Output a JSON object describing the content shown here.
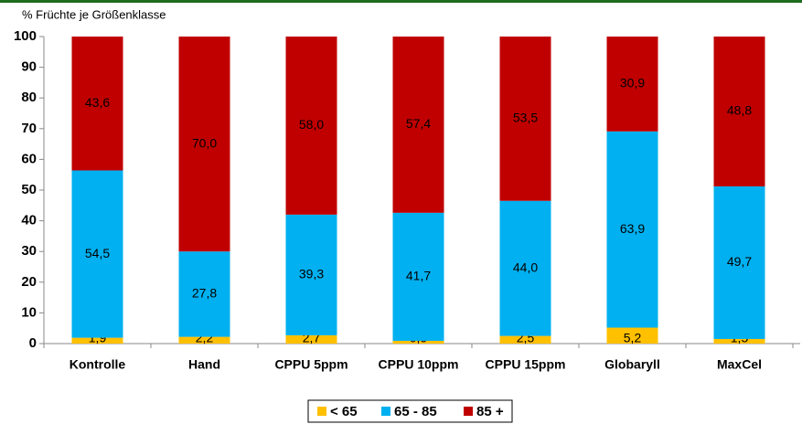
{
  "chart_data": {
    "type": "stacked_bar",
    "y_axis_label": "% Früchte je Größenklasse",
    "categories": [
      "Kontrolle",
      "Hand",
      "CPPU 5ppm",
      "CPPU 10ppm",
      "CPPU 15ppm",
      "Globaryll",
      "MaxCel"
    ],
    "series": [
      {
        "name": "< 65",
        "color": "#ffc000",
        "values": [
          1.9,
          2.2,
          2.7,
          0.9,
          2.5,
          5.2,
          1.5
        ],
        "value_labels": [
          "1,9",
          "2,2",
          "2,7",
          "0,9",
          "2,5",
          "5,2",
          "1,5"
        ]
      },
      {
        "name": "65 - 85",
        "color": "#00b0f0",
        "values": [
          54.5,
          27.8,
          39.3,
          41.7,
          44.0,
          63.9,
          49.7
        ],
        "value_labels": [
          "54,5",
          "27,8",
          "39,3",
          "41,7",
          "44,0",
          "63,9",
          "49,7"
        ]
      },
      {
        "name": "85 +",
        "color": "#c00000",
        "values": [
          43.6,
          70.0,
          58.0,
          57.4,
          53.5,
          30.9,
          48.8
        ],
        "value_labels": [
          "43,6",
          "70,0",
          "58,0",
          "57,4",
          "53,5",
          "30,9",
          "48,8"
        ]
      }
    ],
    "ylim": [
      0,
      100
    ],
    "yticks": [
      0,
      10,
      20,
      30,
      40,
      50,
      60,
      70,
      80,
      90,
      100
    ],
    "legend": "bottom"
  }
}
